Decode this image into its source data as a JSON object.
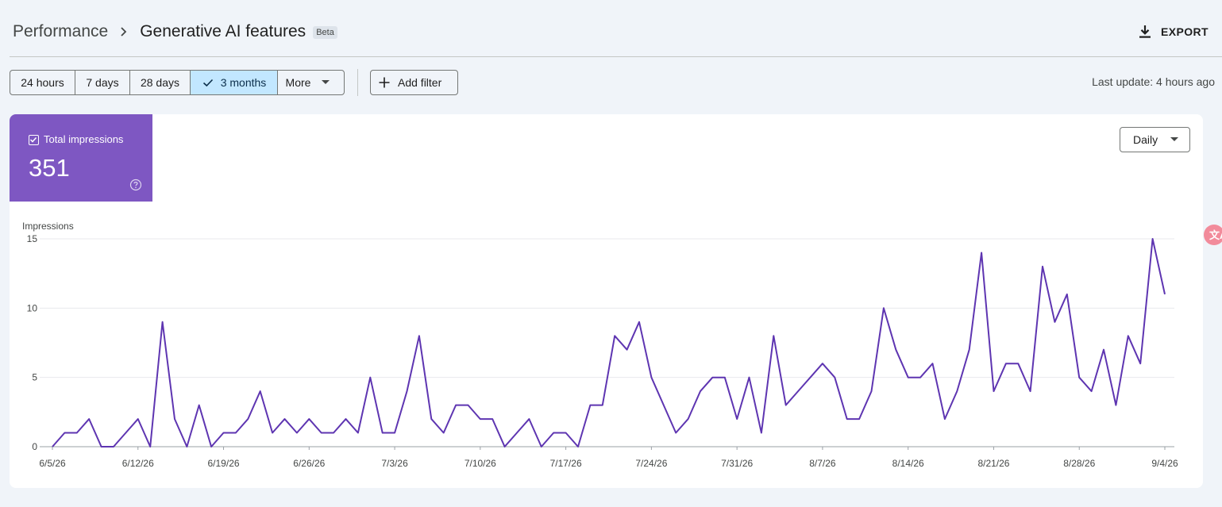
{
  "breadcrumb": {
    "parent": "Performance",
    "current": "Generative AI features",
    "badge": "Beta"
  },
  "toolbar": {
    "export_label": "EXPORT",
    "ranges": [
      "24 hours",
      "7 days",
      "28 days",
      "3 months"
    ],
    "selected_range": "3 months",
    "more_label": "More",
    "add_filter_label": "Add filter",
    "last_update": "Last update: 4 hours ago"
  },
  "metric": {
    "label": "Total impressions",
    "value": "351",
    "checked": true,
    "color": "#7e57c2"
  },
  "granularity": {
    "selected": "Daily"
  },
  "icons": [
    "chevron-right-icon",
    "download-icon",
    "check-icon",
    "caret-down-icon",
    "plus-icon",
    "help-icon",
    "translate-icon"
  ],
  "colors": {
    "accent": "#7e57c2",
    "line": "#5e35b1",
    "selected_chip": "#c2e7ff",
    "background": "#f0f4f9"
  },
  "chart_data": {
    "type": "line",
    "ylabel": "Impressions",
    "ylim": [
      0,
      15
    ],
    "yticks": [
      0,
      5,
      10,
      15
    ],
    "x_tick_labels": [
      "6/5/26",
      "6/12/26",
      "6/19/26",
      "6/26/26",
      "7/3/26",
      "7/10/26",
      "7/17/26",
      "7/24/26",
      "7/31/26",
      "8/7/26",
      "8/14/26",
      "8/21/26",
      "8/28/26",
      "9/4/26"
    ],
    "x_start": "2026-06-05",
    "x_end": "2026-09-04",
    "grid": true,
    "series": [
      {
        "values": [
          0,
          1,
          1,
          2,
          0,
          0,
          1,
          2,
          0,
          9,
          2,
          0,
          3,
          0,
          1,
          1,
          2,
          4,
          1,
          2,
          1,
          2,
          1,
          1,
          2,
          1,
          5,
          1,
          1,
          4,
          8,
          2,
          1,
          3,
          3,
          2,
          2,
          0,
          1,
          2,
          0,
          1,
          1,
          0,
          3,
          3,
          8,
          7,
          9,
          5,
          3,
          1,
          2,
          4,
          5,
          5,
          2,
          5,
          1,
          8,
          3,
          4,
          5,
          6,
          5,
          2,
          2,
          4,
          10,
          7,
          5,
          5,
          6,
          2,
          4,
          7,
          14,
          4,
          6,
          6,
          4,
          13,
          9,
          11,
          5,
          4,
          7,
          3,
          8,
          6,
          15,
          11
        ]
      }
    ]
  }
}
